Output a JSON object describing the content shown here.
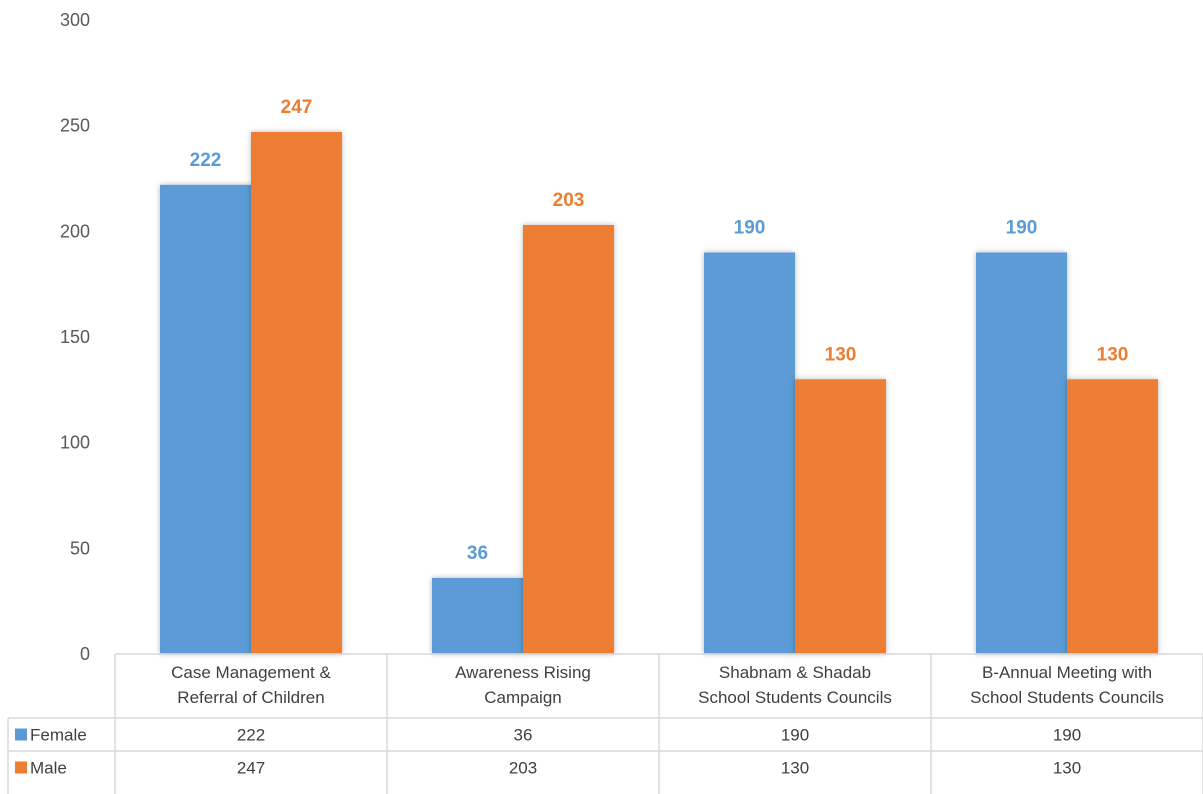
{
  "chart_data": {
    "type": "bar",
    "categories": [
      [
        "Case Management &",
        "Referral of Children"
      ],
      [
        "Awareness Rising",
        "Campaign"
      ],
      [
        "Shabnam & Shadab",
        "School Students Councils"
      ],
      [
        "B-Annual Meeting with",
        "School Students Councils"
      ]
    ],
    "series": [
      {
        "name": "Female",
        "values": [
          222,
          36,
          190,
          190
        ],
        "color": "#5B9BD5"
      },
      {
        "name": "Male",
        "values": [
          247,
          203,
          130,
          130
        ],
        "color": "#ED7D31"
      }
    ],
    "y_ticks": [
      0,
      50,
      100,
      150,
      200,
      250,
      300
    ],
    "ylim": [
      0,
      300
    ],
    "grid": false,
    "legend": "data-table-bottom",
    "data_labels": true
  }
}
